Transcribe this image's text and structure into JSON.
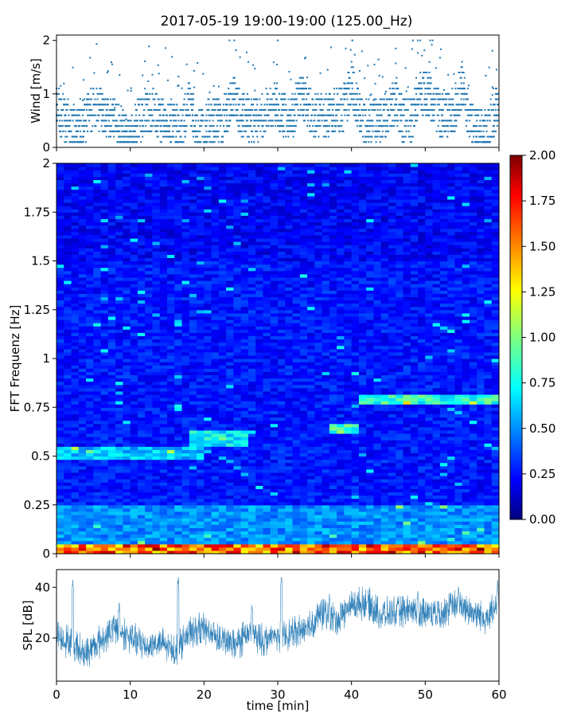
{
  "figure": {
    "title": "2017-05-19 19:00-19:00 (125.00_Hz)"
  },
  "chart_data": [
    {
      "id": "wind",
      "type": "scatter",
      "ylabel": "Wind [m/s]",
      "xlim": [
        0,
        60
      ],
      "ylim": [
        0,
        2.1
      ],
      "yticks": [
        0,
        1,
        2
      ],
      "ytick_labels": [
        "0",
        "1",
        "2"
      ],
      "xticks": [
        0,
        10,
        20,
        30,
        40,
        50,
        60
      ],
      "color": "#1f77b4",
      "segments": [
        {
          "x": 0.0,
          "y": 0.7
        },
        {
          "x": 1.0,
          "y": 0.55
        },
        {
          "x": 2.0,
          "y": 0.4
        },
        {
          "x": 3.0,
          "y": 0.3
        },
        {
          "x": 4.0,
          "y": 0.5
        },
        {
          "x": 5.0,
          "y": 0.75
        },
        {
          "x": 6.0,
          "y": 0.65
        },
        {
          "x": 7.0,
          "y": 0.6
        },
        {
          "x": 8.0,
          "y": 0.55
        },
        {
          "x": 9.0,
          "y": 0.25
        },
        {
          "x": 10.0,
          "y": 0.2
        },
        {
          "x": 11.0,
          "y": 0.45
        },
        {
          "x": 12.0,
          "y": 0.65
        },
        {
          "x": 13.0,
          "y": 0.7
        },
        {
          "x": 14.0,
          "y": 0.55
        },
        {
          "x": 15.0,
          "y": 0.5
        },
        {
          "x": 16.0,
          "y": 0.45
        },
        {
          "x": 17.0,
          "y": 0.3
        },
        {
          "x": 18.0,
          "y": 0.9
        },
        {
          "x": 19.0,
          "y": 0.3
        },
        {
          "x": 20.0,
          "y": 0.4
        },
        {
          "x": 21.0,
          "y": 0.5
        },
        {
          "x": 22.0,
          "y": 0.45
        },
        {
          "x": 23.0,
          "y": 0.6
        },
        {
          "x": 24.0,
          "y": 0.9
        },
        {
          "x": 25.0,
          "y": 0.6
        },
        {
          "x": 26.0,
          "y": 0.55
        },
        {
          "x": 27.0,
          "y": 0.5
        },
        {
          "x": 28.0,
          "y": 0.6
        },
        {
          "x": 29.0,
          "y": 0.75
        },
        {
          "x": 30.0,
          "y": 0.8
        },
        {
          "x": 31.0,
          "y": 0.55
        },
        {
          "x": 32.0,
          "y": 0.6
        },
        {
          "x": 33.0,
          "y": 1.0
        },
        {
          "x": 34.0,
          "y": 0.7
        },
        {
          "x": 35.0,
          "y": 0.6
        },
        {
          "x": 36.0,
          "y": 0.55
        },
        {
          "x": 37.0,
          "y": 0.65
        },
        {
          "x": 38.0,
          "y": 0.7
        },
        {
          "x": 39.0,
          "y": 0.75
        },
        {
          "x": 40.0,
          "y": 1.2
        },
        {
          "x": 41.0,
          "y": 0.6
        },
        {
          "x": 42.0,
          "y": 0.5
        },
        {
          "x": 43.0,
          "y": 0.45
        },
        {
          "x": 44.0,
          "y": 0.5
        },
        {
          "x": 45.0,
          "y": 0.6
        },
        {
          "x": 46.0,
          "y": 0.9
        },
        {
          "x": 47.0,
          "y": 0.5
        },
        {
          "x": 48.0,
          "y": 0.45
        },
        {
          "x": 49.0,
          "y": 1.0
        },
        {
          "x": 50.0,
          "y": 1.05
        },
        {
          "x": 51.0,
          "y": 0.9
        },
        {
          "x": 52.0,
          "y": 0.6
        },
        {
          "x": 53.0,
          "y": 0.55
        },
        {
          "x": 54.0,
          "y": 0.7
        },
        {
          "x": 55.0,
          "y": 1.2
        },
        {
          "x": 56.0,
          "y": 0.5
        },
        {
          "x": 57.0,
          "y": 0.3
        },
        {
          "x": 58.0,
          "y": 0.25
        },
        {
          "x": 59.0,
          "y": 0.5
        },
        {
          "x": 60.0,
          "y": 0.9
        }
      ]
    },
    {
      "id": "spectrogram",
      "type": "heatmap",
      "ylabel": "FFT Frequenz [Hz]",
      "xlim": [
        0,
        60
      ],
      "ylim": [
        0,
        2
      ],
      "yticks": [
        0,
        0.25,
        0.5,
        0.75,
        1,
        1.25,
        1.5,
        1.75,
        2
      ],
      "ytick_labels": [
        "0",
        "0.25",
        "0.5",
        "0.75",
        "1",
        "1.25",
        "1.5",
        "1.75",
        "2"
      ],
      "colormap": "jet",
      "clim": [
        0,
        2
      ],
      "colorbar_ticks": [
        "0.00",
        "0.25",
        "0.50",
        "0.75",
        "1.00",
        "1.25",
        "1.50",
        "1.75",
        "2.00"
      ],
      "features": [
        {
          "x": [
            0,
            60
          ],
          "y": [
            0,
            0.05
          ],
          "level": 1.6
        },
        {
          "x": [
            0,
            60
          ],
          "y": [
            0.05,
            0.25
          ],
          "level": 0.55
        },
        {
          "x": [
            0,
            20
          ],
          "y": [
            0.48,
            0.55
          ],
          "level": 0.65
        },
        {
          "x": [
            18,
            26
          ],
          "y": [
            0.55,
            0.64
          ],
          "level": 0.75
        },
        {
          "x": [
            37,
            41
          ],
          "y": [
            0.62,
            0.67
          ],
          "level": 0.9
        },
        {
          "x": [
            41,
            60
          ],
          "y": [
            0.77,
            0.82
          ],
          "level": 0.85
        }
      ]
    },
    {
      "id": "spl",
      "type": "line",
      "ylabel": "SPL [dB]",
      "xlabel": "time [min]",
      "xlim": [
        0,
        60
      ],
      "ylim": [
        3,
        47
      ],
      "yticks": [
        20,
        40
      ],
      "ytick_labels": [
        "20",
        "40"
      ],
      "xticks": [
        0,
        10,
        20,
        30,
        40,
        50,
        60
      ],
      "xtick_labels": [
        "0",
        "10",
        "20",
        "30",
        "40",
        "50",
        "60"
      ],
      "color": "#1f77b4",
      "x": [
        0,
        2,
        4,
        6,
        8,
        10,
        12,
        14,
        16,
        18,
        20,
        22,
        24,
        26,
        28,
        30,
        32,
        34,
        36,
        38,
        40,
        42,
        44,
        46,
        48,
        50,
        52,
        54,
        56,
        58,
        60
      ],
      "y": [
        21,
        18,
        14,
        19,
        24,
        20,
        17,
        18,
        15,
        22,
        24,
        20,
        17,
        22,
        19,
        21,
        22,
        24,
        30,
        27,
        33,
        34,
        29,
        30,
        31,
        30,
        30,
        33,
        31,
        28,
        32
      ],
      "spikes": [
        {
          "x": 2.2,
          "y": 42
        },
        {
          "x": 8.5,
          "y": 34
        },
        {
          "x": 16.5,
          "y": 44
        },
        {
          "x": 26.5,
          "y": 33
        },
        {
          "x": 30.5,
          "y": 44
        },
        {
          "x": 37.0,
          "y": 36
        },
        {
          "x": 49.0,
          "y": 39
        },
        {
          "x": 54.5,
          "y": 40
        },
        {
          "x": 59.8,
          "y": 42
        }
      ]
    }
  ]
}
